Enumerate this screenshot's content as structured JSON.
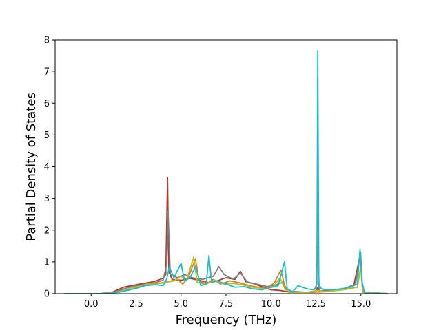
{
  "chart_data": {
    "type": "line",
    "title": "",
    "xlabel": "Frequency (THz)",
    "ylabel": "Partial Density of States",
    "xlim": [
      -2.0,
      17.0
    ],
    "ylim": [
      0,
      8
    ],
    "x_ticks": [
      0.0,
      2.5,
      5.0,
      7.5,
      10.0,
      12.5,
      15.0
    ],
    "x_tick_labels": [
      "0.0",
      "2.5",
      "5.0",
      "7.5",
      "10.0",
      "12.5",
      "15.0"
    ],
    "y_ticks": [
      0,
      1,
      2,
      3,
      4,
      5,
      6,
      7,
      8
    ],
    "y_tick_labels": [
      "0",
      "1",
      "2",
      "3",
      "4",
      "5",
      "6",
      "7",
      "8"
    ],
    "grid": false,
    "legend": "none",
    "series": [
      {
        "color": "#b03a2e",
        "points": [
          [
            -1.5,
            0
          ],
          [
            0.5,
            0
          ],
          [
            1.2,
            0.05
          ],
          [
            1.8,
            0.2
          ],
          [
            2.5,
            0.28
          ],
          [
            3.0,
            0.33
          ],
          [
            3.5,
            0.38
          ],
          [
            4.0,
            0.48
          ],
          [
            4.15,
            0.6
          ],
          [
            4.25,
            3.65
          ],
          [
            4.32,
            0.7
          ],
          [
            4.5,
            0.45
          ],
          [
            5.0,
            0.42
          ],
          [
            5.5,
            0.48
          ],
          [
            6.0,
            0.42
          ],
          [
            6.5,
            0.35
          ],
          [
            7.0,
            0.4
          ],
          [
            7.5,
            0.5
          ],
          [
            8.0,
            0.45
          ],
          [
            8.3,
            0.7
          ],
          [
            8.6,
            0.38
          ],
          [
            9.0,
            0.32
          ],
          [
            9.5,
            0.22
          ],
          [
            10.0,
            0.12
          ],
          [
            10.5,
            0.1
          ],
          [
            11.0,
            0.05
          ],
          [
            12.0,
            0.04
          ],
          [
            12.5,
            0.05
          ],
          [
            12.6,
            0.2
          ],
          [
            12.65,
            0.05
          ],
          [
            13.0,
            0.08
          ],
          [
            14.0,
            0.15
          ],
          [
            14.6,
            0.25
          ],
          [
            14.95,
            1.2
          ],
          [
            15.1,
            0.05
          ],
          [
            16.5,
            0
          ]
        ]
      },
      {
        "color": "#7f7f7f",
        "points": [
          [
            -1.5,
            0
          ],
          [
            0.5,
            0
          ],
          [
            1.3,
            0.05
          ],
          [
            2.0,
            0.18
          ],
          [
            3.0,
            0.3
          ],
          [
            3.5,
            0.33
          ],
          [
            4.0,
            0.42
          ],
          [
            4.2,
            0.9
          ],
          [
            4.28,
            2.6
          ],
          [
            4.4,
            0.6
          ],
          [
            4.8,
            0.5
          ],
          [
            5.2,
            0.6
          ],
          [
            5.6,
            0.5
          ],
          [
            6.2,
            0.45
          ],
          [
            6.8,
            0.55
          ],
          [
            7.1,
            0.85
          ],
          [
            7.4,
            0.6
          ],
          [
            7.9,
            0.45
          ],
          [
            8.3,
            0.65
          ],
          [
            8.7,
            0.35
          ],
          [
            9.2,
            0.3
          ],
          [
            9.8,
            0.22
          ],
          [
            10.3,
            0.28
          ],
          [
            10.6,
            0.35
          ],
          [
            11.0,
            0.08
          ],
          [
            12.0,
            0.04
          ],
          [
            12.5,
            0.06
          ],
          [
            12.6,
            1.55
          ],
          [
            12.68,
            0.08
          ],
          [
            13.0,
            0.1
          ],
          [
            14.0,
            0.14
          ],
          [
            14.7,
            0.3
          ],
          [
            14.98,
            1.3
          ],
          [
            15.1,
            0.05
          ],
          [
            16.5,
            0
          ]
        ]
      },
      {
        "color": "#e07b1f",
        "points": [
          [
            -1.5,
            0
          ],
          [
            0.6,
            0
          ],
          [
            1.4,
            0.05
          ],
          [
            2.2,
            0.15
          ],
          [
            2.8,
            0.25
          ],
          [
            3.3,
            0.32
          ],
          [
            3.8,
            0.33
          ],
          [
            4.3,
            0.38
          ],
          [
            4.8,
            0.45
          ],
          [
            5.1,
            0.3
          ],
          [
            5.4,
            0.5
          ],
          [
            5.8,
            1.1
          ],
          [
            6.0,
            0.4
          ],
          [
            6.4,
            0.3
          ],
          [
            6.8,
            0.45
          ],
          [
            7.2,
            0.3
          ],
          [
            7.7,
            0.4
          ],
          [
            8.2,
            0.35
          ],
          [
            8.8,
            0.25
          ],
          [
            9.3,
            0.2
          ],
          [
            9.8,
            0.15
          ],
          [
            10.2,
            0.35
          ],
          [
            10.55,
            0.75
          ],
          [
            10.8,
            0.15
          ],
          [
            11.1,
            0.05
          ],
          [
            12.0,
            0.04
          ],
          [
            12.5,
            0.05
          ],
          [
            13.0,
            0.06
          ],
          [
            14.0,
            0.12
          ],
          [
            14.8,
            0.2
          ],
          [
            15.0,
            0.9
          ],
          [
            15.1,
            0.05
          ],
          [
            16.5,
            0
          ]
        ]
      },
      {
        "color": "#bcbd22",
        "points": [
          [
            -1.5,
            0
          ],
          [
            0.6,
            0
          ],
          [
            1.5,
            0.05
          ],
          [
            2.3,
            0.18
          ],
          [
            3.0,
            0.28
          ],
          [
            3.6,
            0.3
          ],
          [
            4.1,
            0.35
          ],
          [
            4.6,
            0.4
          ],
          [
            5.0,
            0.55
          ],
          [
            5.3,
            0.4
          ],
          [
            5.7,
            1.15
          ],
          [
            5.9,
            0.35
          ],
          [
            6.3,
            0.3
          ],
          [
            6.9,
            0.4
          ],
          [
            7.4,
            0.3
          ],
          [
            7.9,
            0.32
          ],
          [
            8.4,
            0.28
          ],
          [
            9.0,
            0.2
          ],
          [
            9.6,
            0.15
          ],
          [
            10.1,
            0.2
          ],
          [
            10.5,
            0.5
          ],
          [
            10.8,
            0.12
          ],
          [
            11.2,
            0.05
          ],
          [
            12.0,
            0.04
          ],
          [
            12.6,
            0.1
          ],
          [
            13.0,
            0.06
          ],
          [
            14.0,
            0.12
          ],
          [
            14.8,
            0.2
          ],
          [
            15.0,
            0.85
          ],
          [
            15.12,
            0.05
          ],
          [
            16.5,
            0
          ]
        ]
      },
      {
        "color": "#17becf",
        "points": [
          [
            -1.5,
            0
          ],
          [
            0.8,
            0
          ],
          [
            1.6,
            0.05
          ],
          [
            2.4,
            0.15
          ],
          [
            3.0,
            0.25
          ],
          [
            3.6,
            0.28
          ],
          [
            4.0,
            0.25
          ],
          [
            4.2,
            0.45
          ],
          [
            4.35,
            0.85
          ],
          [
            4.6,
            0.5
          ],
          [
            5.0,
            0.95
          ],
          [
            5.2,
            0.4
          ],
          [
            5.5,
            0.5
          ],
          [
            5.8,
            0.85
          ],
          [
            6.1,
            0.25
          ],
          [
            6.4,
            0.3
          ],
          [
            6.55,
            1.2
          ],
          [
            6.7,
            0.35
          ],
          [
            7.0,
            0.4
          ],
          [
            7.5,
            0.3
          ],
          [
            8.0,
            0.2
          ],
          [
            8.5,
            0.22
          ],
          [
            9.0,
            0.15
          ],
          [
            9.5,
            0.12
          ],
          [
            10.0,
            0.2
          ],
          [
            10.4,
            0.25
          ],
          [
            10.75,
            1.0
          ],
          [
            10.9,
            0.15
          ],
          [
            11.2,
            0.05
          ],
          [
            11.5,
            0.25
          ],
          [
            12.0,
            0.15
          ],
          [
            12.4,
            0.12
          ],
          [
            12.55,
            0.3
          ],
          [
            12.6,
            7.65
          ],
          [
            12.66,
            0.3
          ],
          [
            12.8,
            0.15
          ],
          [
            13.2,
            0.12
          ],
          [
            13.8,
            0.14
          ],
          [
            14.4,
            0.2
          ],
          [
            14.8,
            0.3
          ],
          [
            14.95,
            1.4
          ],
          [
            15.05,
            0.4
          ],
          [
            15.2,
            0.02
          ],
          [
            16.5,
            0
          ]
        ]
      }
    ]
  }
}
